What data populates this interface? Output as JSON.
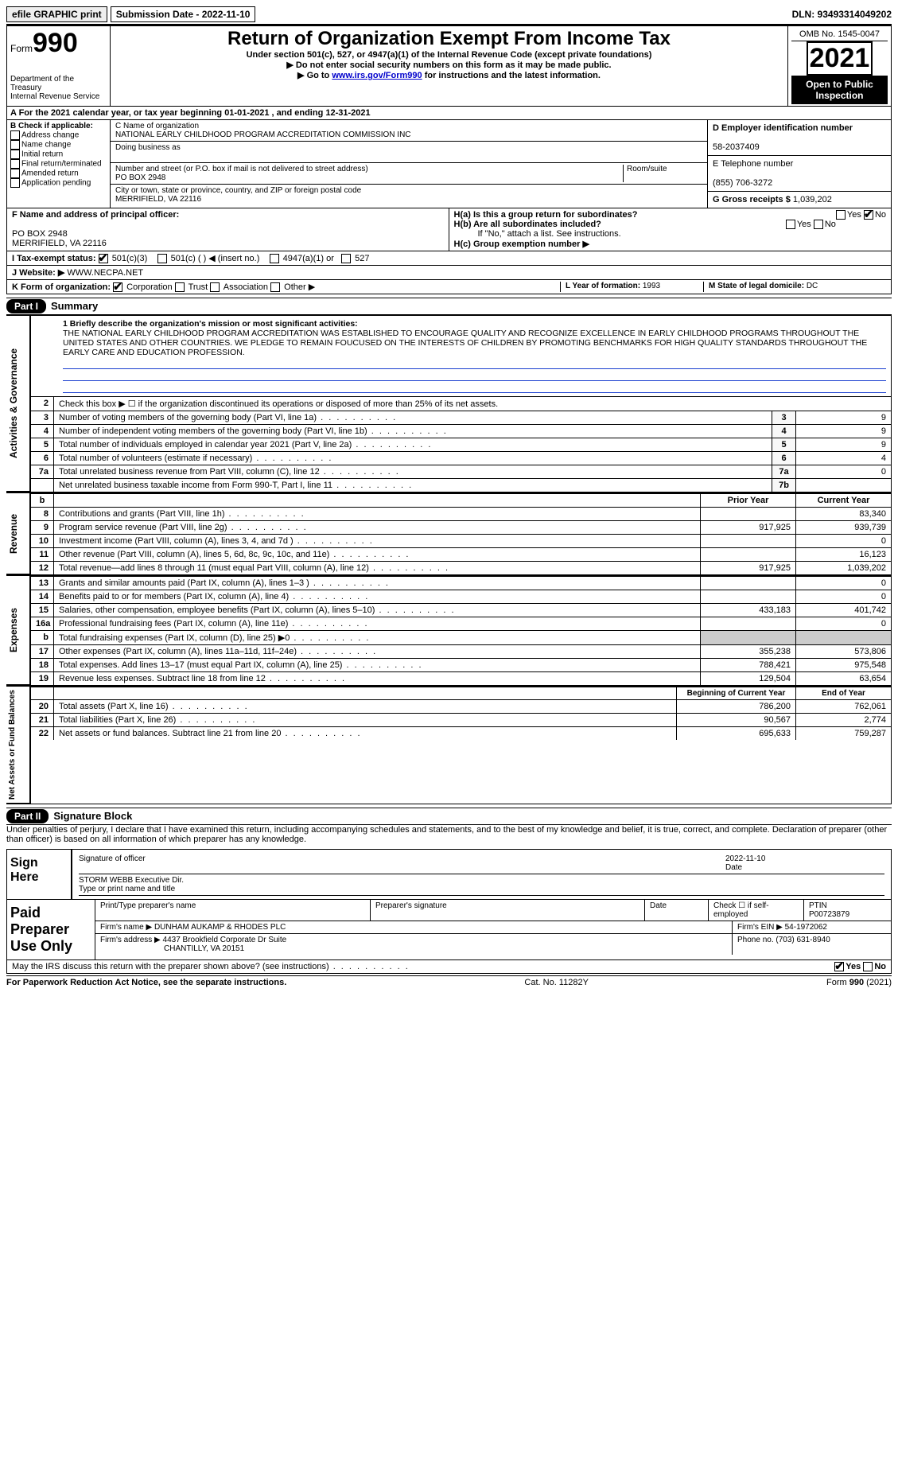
{
  "topbar": {
    "efile_label": "efile GRAPHIC print",
    "submission_label": "Submission Date - 2022-11-10",
    "dln_label": "DLN: 93493314049202"
  },
  "header": {
    "form_label": "Form",
    "form_number": "990",
    "dept": "Department of the Treasury",
    "irs": "Internal Revenue Service",
    "title": "Return of Organization Exempt From Income Tax",
    "subtitle": "Under section 501(c), 527, or 4947(a)(1) of the Internal Revenue Code (except private foundations)",
    "hint1": "▶ Do not enter social security numbers on this form as it may be made public.",
    "hint2_pre": "▶ Go to ",
    "hint2_link": "www.irs.gov/Form990",
    "hint2_post": " for instructions and the latest information.",
    "omb": "OMB No. 1545-0047",
    "year": "2021",
    "open_public": "Open to Public Inspection"
  },
  "row_a": "A For the 2021 calendar year, or tax year beginning 01-01-2021   , and ending 12-31-2021",
  "col_b": {
    "title": "B Check if applicable:",
    "items": [
      "Address change",
      "Name change",
      "Initial return",
      "Final return/terminated",
      "Amended return",
      "Application pending"
    ]
  },
  "col_c": {
    "name_label": "C Name of organization",
    "name": "NATIONAL EARLY CHILDHOOD PROGRAM ACCREDITATION COMMISSION INC",
    "dba_label": "Doing business as",
    "addr_label": "Number and street (or P.O. box if mail is not delivered to street address)",
    "room_label": "Room/suite",
    "addr": "PO BOX 2948",
    "city_label": "City or town, state or province, country, and ZIP or foreign postal code",
    "city": "MERRIFIELD, VA  22116"
  },
  "col_d": {
    "ein_label": "D Employer identification number",
    "ein": "58-2037409",
    "phone_label": "E Telephone number",
    "phone": "(855) 706-3272",
    "gross_label": "G Gross receipts $",
    "gross": "1,039,202"
  },
  "row_f": {
    "label": "F  Name and address of principal officer:",
    "addr1": "PO BOX 2948",
    "addr2": "MERRIFIELD, VA  22116"
  },
  "row_h": {
    "ha": "H(a)  Is this a group return for subordinates?",
    "hb": "H(b)  Are all subordinates included?",
    "hb_note": "If \"No,\" attach a list. See instructions.",
    "hc": "H(c)  Group exemption number ▶",
    "yes": "Yes",
    "no": "No"
  },
  "row_i": {
    "label": "I  Tax-exempt status:",
    "opt1": "501(c)(3)",
    "opt2": "501(c) (  ) ◀ (insert no.)",
    "opt3": "4947(a)(1) or",
    "opt4": "527"
  },
  "row_j": {
    "label": "J  Website: ▶",
    "value": " WWW.NECPA.NET"
  },
  "row_k": {
    "label": "K Form of organization:",
    "opts": [
      "Corporation",
      "Trust",
      "Association",
      "Other ▶"
    ],
    "l_label": "L Year of formation: ",
    "l_val": "1993",
    "m_label": "M State of legal domicile: ",
    "m_val": "DC"
  },
  "part1": {
    "hdr": "Part I",
    "title": "Summary",
    "vtab": "Activities & Governance",
    "line1_label": "1  Briefly describe the organization's mission or most significant activities:",
    "mission": "THE NATIONAL EARLY CHILDHOOD PROGRAM ACCREDITATION WAS ESTABLISHED TO ENCOURAGE QUALITY AND RECOGNIZE EXCELLENCE IN EARLY CHILDHOOD PROGRAMS THROUGHOUT THE UNITED STATES AND OTHER COUNTRIES. WE PLEDGE TO REMAIN FOUCUSED ON THE INTERESTS OF CHILDREN BY PROMOTING BENCHMARKS FOR HIGH QUALITY STANDARDS THROUGHOUT THE EARLY CARE AND EDUCATION PROFESSION.",
    "line2": "Check this box ▶ ☐  if the organization discontinued its operations or disposed of more than 25% of its net assets.",
    "rows": [
      {
        "n": "3",
        "t": "Number of voting members of the governing body (Part VI, line 1a)",
        "c": "3",
        "v": "9"
      },
      {
        "n": "4",
        "t": "Number of independent voting members of the governing body (Part VI, line 1b)",
        "c": "4",
        "v": "9"
      },
      {
        "n": "5",
        "t": "Total number of individuals employed in calendar year 2021 (Part V, line 2a)",
        "c": "5",
        "v": "9"
      },
      {
        "n": "6",
        "t": "Total number of volunteers (estimate if necessary)",
        "c": "6",
        "v": "4"
      },
      {
        "n": "7a",
        "t": "Total unrelated business revenue from Part VIII, column (C), line 12",
        "c": "7a",
        "v": "0"
      },
      {
        "n": "",
        "t": "Net unrelated business taxable income from Form 990-T, Part I, line 11",
        "c": "7b",
        "v": ""
      }
    ]
  },
  "revenue": {
    "vtab": "Revenue",
    "hdr_b": "b",
    "col_prior": "Prior Year",
    "col_current": "Current Year",
    "rows": [
      {
        "n": "8",
        "t": "Contributions and grants (Part VIII, line 1h)",
        "p": "",
        "c": "83,340"
      },
      {
        "n": "9",
        "t": "Program service revenue (Part VIII, line 2g)",
        "p": "917,925",
        "c": "939,739"
      },
      {
        "n": "10",
        "t": "Investment income (Part VIII, column (A), lines 3, 4, and 7d )",
        "p": "",
        "c": "0"
      },
      {
        "n": "11",
        "t": "Other revenue (Part VIII, column (A), lines 5, 6d, 8c, 9c, 10c, and 11e)",
        "p": "",
        "c": "16,123"
      },
      {
        "n": "12",
        "t": "Total revenue—add lines 8 through 11 (must equal Part VIII, column (A), line 12)",
        "p": "917,925",
        "c": "1,039,202"
      }
    ]
  },
  "expenses": {
    "vtab": "Expenses",
    "rows": [
      {
        "n": "13",
        "t": "Grants and similar amounts paid (Part IX, column (A), lines 1–3 )",
        "p": "",
        "c": "0"
      },
      {
        "n": "14",
        "t": "Benefits paid to or for members (Part IX, column (A), line 4)",
        "p": "",
        "c": "0"
      },
      {
        "n": "15",
        "t": "Salaries, other compensation, employee benefits (Part IX, column (A), lines 5–10)",
        "p": "433,183",
        "c": "401,742"
      },
      {
        "n": "16a",
        "t": "Professional fundraising fees (Part IX, column (A), line 11e)",
        "p": "",
        "c": "0"
      },
      {
        "n": "b",
        "t": "Total fundraising expenses (Part IX, column (D), line 25) ▶0",
        "p": "shade",
        "c": "shade"
      },
      {
        "n": "17",
        "t": "Other expenses (Part IX, column (A), lines 11a–11d, 11f–24e)",
        "p": "355,238",
        "c": "573,806"
      },
      {
        "n": "18",
        "t": "Total expenses. Add lines 13–17 (must equal Part IX, column (A), line 25)",
        "p": "788,421",
        "c": "975,548"
      },
      {
        "n": "19",
        "t": "Revenue less expenses. Subtract line 18 from line 12",
        "p": "129,504",
        "c": "63,654"
      }
    ]
  },
  "netassets": {
    "vtab": "Net Assets or Fund Balances",
    "col_begin": "Beginning of Current Year",
    "col_end": "End of Year",
    "rows": [
      {
        "n": "20",
        "t": "Total assets (Part X, line 16)",
        "p": "786,200",
        "c": "762,061"
      },
      {
        "n": "21",
        "t": "Total liabilities (Part X, line 26)",
        "p": "90,567",
        "c": "2,774"
      },
      {
        "n": "22",
        "t": "Net assets or fund balances. Subtract line 21 from line 20",
        "p": "695,633",
        "c": "759,287"
      }
    ]
  },
  "part2": {
    "hdr": "Part II",
    "title": "Signature Block",
    "penalties": "Under penalties of perjury, I declare that I have examined this return, including accompanying schedules and statements, and to the best of my knowledge and belief, it is true, correct, and complete. Declaration of preparer (other than officer) is based on all information of which preparer has any knowledge.",
    "sign_here": "Sign Here",
    "sig_officer": "Signature of officer",
    "date_label": "Date",
    "sig_date": "2022-11-10",
    "officer_name": "STORM WEBB  Executive Dir.",
    "type_label": "Type or print name and title",
    "paid_prep": "Paid Preparer Use Only",
    "prep_name_label": "Print/Type preparer's name",
    "prep_sig_label": "Preparer's signature",
    "prep_date_label": "Date",
    "self_emp": "Check ☐ if self-employed",
    "ptin_label": "PTIN",
    "ptin": "P00723879",
    "firm_name_label": "Firm's name    ▶ ",
    "firm_name": "DUNHAM AUKAMP & RHODES PLC",
    "firm_ein_label": "Firm's EIN ▶ ",
    "firm_ein": "54-1972062",
    "firm_addr_label": "Firm's address ▶ ",
    "firm_addr1": "4437 Brookfield Corporate Dr Suite",
    "firm_addr2": "CHANTILLY, VA  20151",
    "firm_phone_label": "Phone no. ",
    "firm_phone": "(703) 631-8940",
    "discuss": "May the IRS discuss this return with the preparer shown above? (see instructions)",
    "yes": "Yes",
    "no": "No"
  },
  "footer": {
    "pra": "For Paperwork Reduction Act Notice, see the separate instructions.",
    "cat": "Cat. No. 11282Y",
    "form": "Form 990 (2021)"
  }
}
